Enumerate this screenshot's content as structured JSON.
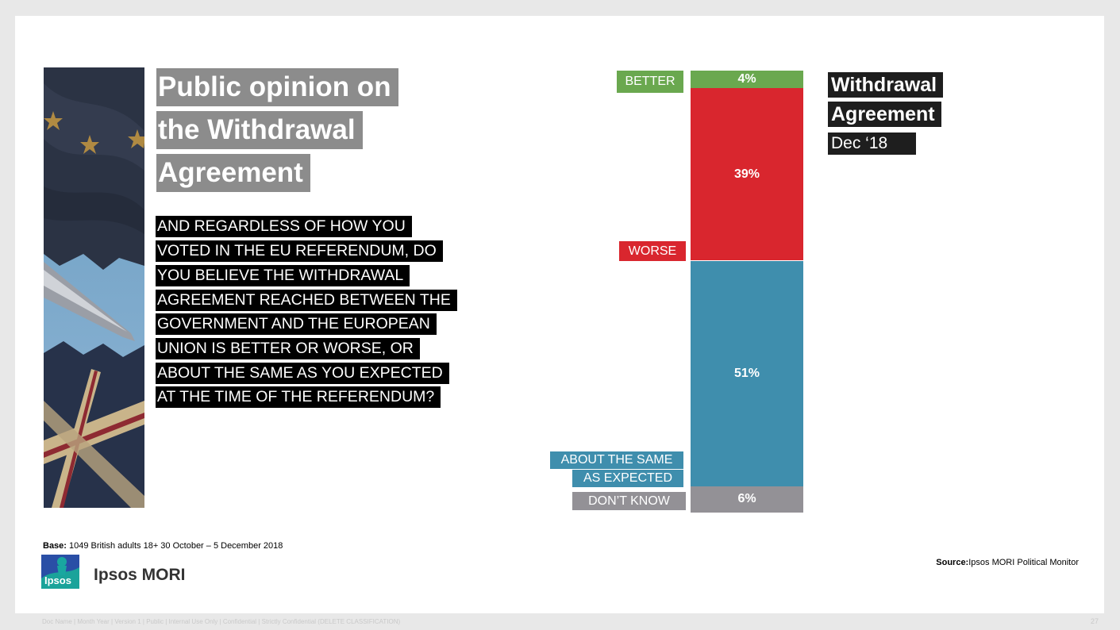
{
  "title_lines": [
    "Public opinion on",
    "the Withdrawal",
    "Agreement"
  ],
  "question_lines": [
    "AND REGARDLESS OF HOW YOU",
    "VOTED IN THE EU REFERENDUM, DO",
    "YOU BELIEVE THE WITHDRAWAL",
    "AGREEMENT REACHED BETWEEN THE",
    "GOVERNMENT AND THE EUROPEAN",
    "UNION IS BETTER OR WORSE, OR",
    "ABOUT THE SAME AS YOU EXPECTED",
    "AT THE TIME OF THE REFERENDUM?"
  ],
  "chart_data": {
    "type": "bar",
    "stacked": true,
    "series_title": [
      "Withdrawal",
      "Agreement",
      "Dec ‘18"
    ],
    "segments": [
      {
        "category": "BETTER",
        "value": 4,
        "label": "4%",
        "color": "#6aa84f"
      },
      {
        "category": "WORSE",
        "value": 39,
        "label": "39%",
        "color": "#d9262e"
      },
      {
        "category": "ABOUT THE SAME AS EXPECTED",
        "category_lines": [
          "ABOUT THE SAME",
          "AS EXPECTED"
        ],
        "value": 51,
        "label": "51%",
        "color": "#3f8ead"
      },
      {
        "category": "DON’T KNOW",
        "value": 6,
        "label": "6%",
        "color": "#939196"
      }
    ]
  },
  "base": {
    "label": "Base:",
    "text": "1049 British adults 18+ 30 October – 5 December 2018"
  },
  "source": {
    "label": "Source:",
    "text": "Ipsos MORI Political Monitor"
  },
  "logo": {
    "text": "Ipsos"
  },
  "brand": "Ipsos MORI",
  "footer": "Doc Name | Month Year | Version 1 | Public | Internal Use Only | Confidential | Strictly Confidential  (DELETE CLASSIFICATION)",
  "page_number": "27",
  "colors": {
    "title_bg": "#8c8c8c",
    "question_bg": "#000000",
    "legend_bg": "#1e1e1e"
  }
}
